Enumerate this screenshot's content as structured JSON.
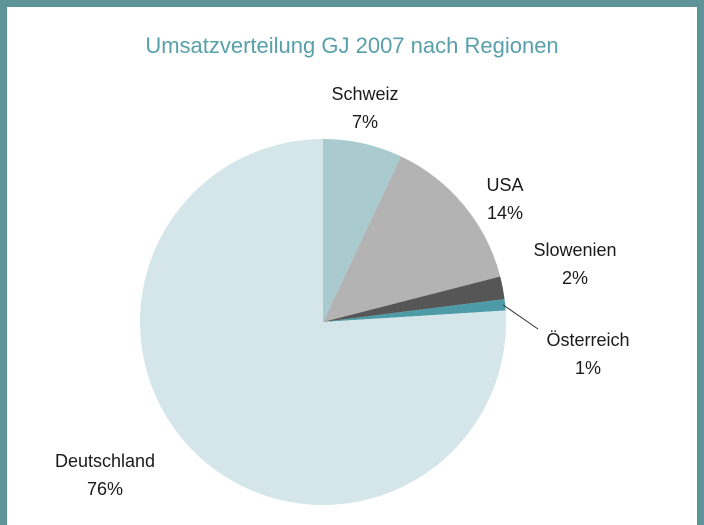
{
  "chart_data": {
    "type": "pie",
    "title": "Umsatzverteilung GJ 2007 nach Regionen",
    "categories": [
      "Schweiz",
      "USA",
      "Slowenien",
      "Österreich",
      "Deutschland"
    ],
    "values": [
      7,
      14,
      2,
      1,
      76
    ],
    "value_labels": [
      "7%",
      "14%",
      "2%",
      "1%",
      "76%"
    ],
    "colors": [
      "#a9cbd0",
      "#b3b3b3",
      "#565656",
      "#4d9ba6",
      "#d4e6e9"
    ]
  }
}
